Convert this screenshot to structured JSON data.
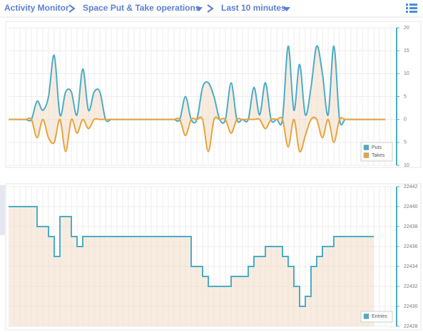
{
  "breadcrumb": [
    "Activity Monitor",
    "Space Put & Take operations",
    "Last 10 minutes"
  ],
  "chart_data": [
    {
      "type": "line",
      "area": true,
      "xlim": [
        0,
        68
      ],
      "ylim": [
        -10,
        20
      ],
      "yticks": [
        20,
        15,
        10,
        5,
        0,
        {
          "value": -5,
          "label": "5"
        },
        {
          "value": -10,
          "label": "10"
        }
      ],
      "grid": true,
      "legend": "bottom-right",
      "series": [
        {
          "name": "Puts",
          "color": "#4bacc6",
          "values": [
            0,
            0,
            0,
            0,
            0,
            4,
            2,
            5,
            14,
            1,
            6,
            6,
            1,
            11,
            2,
            6,
            6,
            0,
            0,
            0,
            0,
            0,
            0,
            0,
            0,
            0,
            0,
            0,
            0,
            0,
            0,
            5,
            0,
            0,
            7,
            8,
            5,
            0,
            0,
            8,
            0,
            0,
            0,
            7,
            1,
            8,
            0,
            0,
            0,
            16,
            2,
            12,
            1,
            7,
            16,
            10,
            1,
            16,
            0,
            0,
            0,
            0,
            0,
            0,
            0,
            0,
            0
          ]
        },
        {
          "name": "Takes",
          "color": "#e8a33a",
          "values": [
            0,
            0,
            0,
            0,
            0,
            -4,
            0,
            -4,
            -5,
            0,
            -7,
            0,
            -3,
            0,
            -2,
            0,
            0,
            0,
            0,
            0,
            0,
            0,
            0,
            0,
            0,
            0,
            0,
            0,
            0,
            0,
            0,
            -3.5,
            0,
            0,
            0,
            -7,
            0,
            0,
            0,
            -3,
            0,
            0,
            0,
            0,
            0,
            -2,
            0,
            0,
            0,
            -6,
            0,
            -7,
            -3.5,
            0,
            0,
            -4,
            0,
            -5,
            0,
            0,
            0,
            0,
            0,
            0,
            0,
            0,
            0
          ]
        }
      ]
    },
    {
      "type": "step",
      "area": true,
      "xlim": [
        0,
        68
      ],
      "ylim": [
        22428,
        22442
      ],
      "yticks": [
        22442,
        22440,
        22438,
        22436,
        22434,
        22432,
        22430,
        22428
      ],
      "grid": true,
      "legend": "bottom-right",
      "series": [
        {
          "name": "Entries",
          "color": "#4bacc6",
          "values": [
            22440,
            22440,
            22440,
            22440,
            22440,
            22438,
            22438,
            22437,
            22435,
            22439,
            22439,
            22437,
            22436,
            22437,
            22437,
            22437,
            22437,
            22437,
            22437,
            22437,
            22437,
            22437,
            22437,
            22437,
            22437,
            22437,
            22437,
            22437,
            22437,
            22437,
            22437,
            22437,
            22434,
            22434,
            22433,
            22432,
            22432,
            22432,
            22432,
            22433,
            22433,
            22433,
            22434,
            22435,
            22435,
            22436,
            22436,
            22436,
            22435,
            22434,
            22432,
            22430,
            22431,
            22434,
            22435,
            22436,
            22436,
            22437,
            22437,
            22437,
            22437,
            22437,
            22437,
            22437,
            22437
          ]
        }
      ]
    }
  ]
}
